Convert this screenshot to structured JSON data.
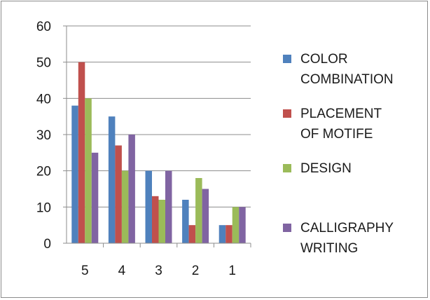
{
  "chart_data": {
    "type": "bar",
    "categories": [
      "5",
      "4",
      "3",
      "2",
      "1"
    ],
    "series": [
      {
        "name": "COLOR COMBINATION",
        "color": "#4f81bd",
        "values": [
          38,
          35,
          20,
          12,
          5
        ]
      },
      {
        "name": "PLACEMENT OF MOTIFE",
        "color": "#c0504d",
        "values": [
          50,
          27,
          13,
          5,
          5
        ]
      },
      {
        "name": "DESIGN",
        "color": "#9bbb59",
        "values": [
          40,
          20,
          12,
          18,
          10
        ]
      },
      {
        "name": "CALLIGRAPHY WRITING",
        "color": "#8064a2",
        "values": [
          25,
          30,
          20,
          15,
          10
        ]
      }
    ],
    "yticks": [
      0,
      10,
      20,
      30,
      40,
      50,
      60
    ],
    "ylim": [
      0,
      60
    ],
    "grid": true,
    "legend_position": "right"
  }
}
